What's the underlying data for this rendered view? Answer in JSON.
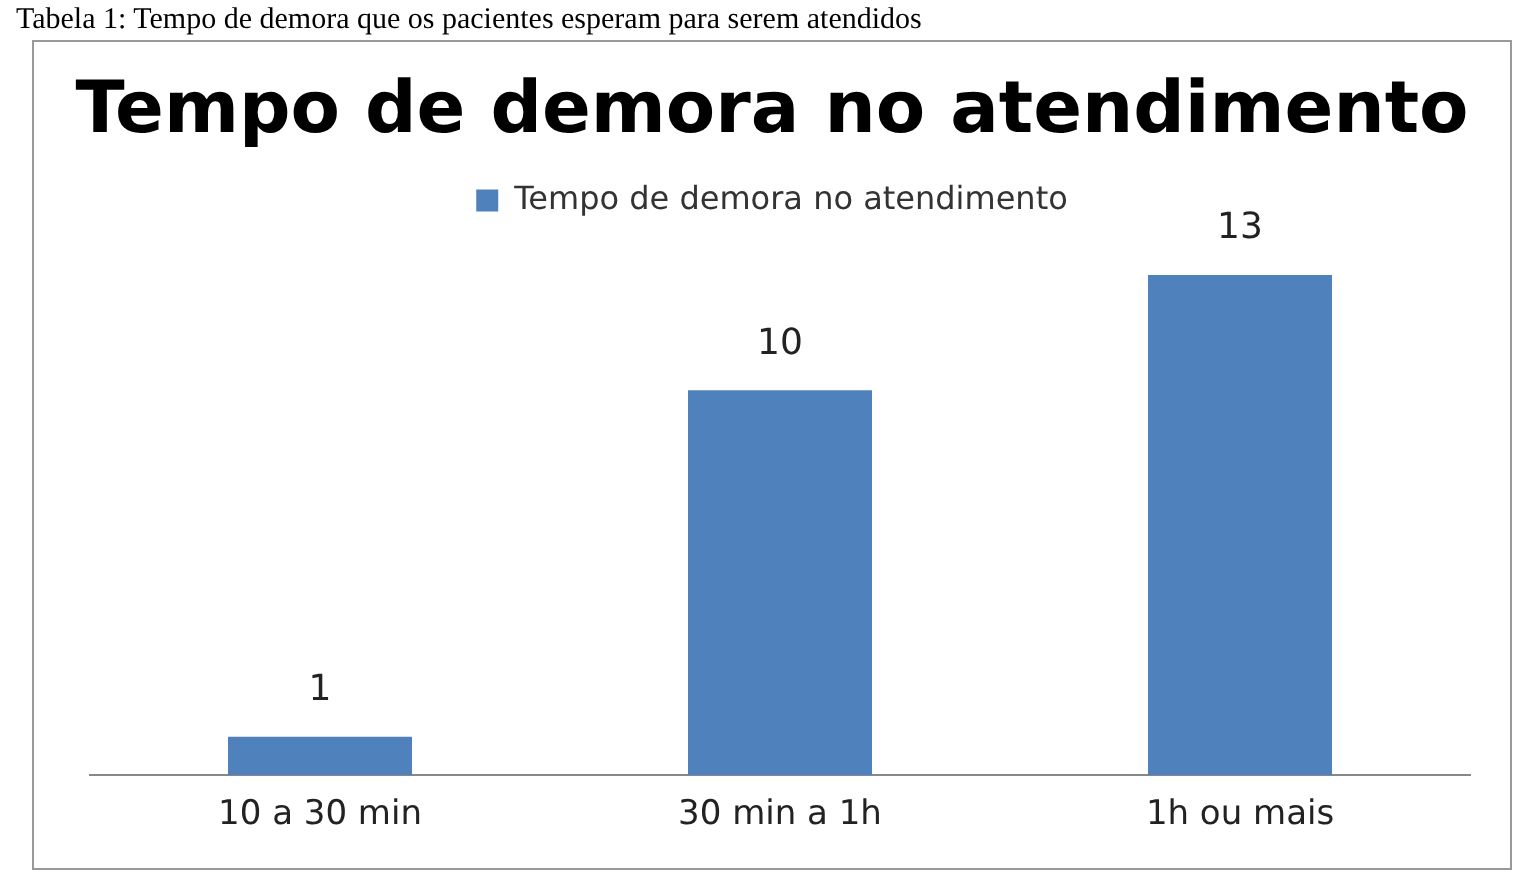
{
  "chart_data": {
    "type": "bar",
    "title": "Tempo de demora no atendimento",
    "annotations": [
      "Tabela 1: Tempo de demora que os pacientes esperam para serem atendidos"
    ],
    "categories": [
      "10 a 30 min",
      "30 min a 1h",
      "1h ou mais"
    ],
    "series": [
      {
        "name": "Tempo de demora no atendimento",
        "color": "#4f81bd",
        "values": [
          1,
          10,
          13
        ]
      }
    ],
    "data_labels": true,
    "legend": "top",
    "grid": false
  }
}
